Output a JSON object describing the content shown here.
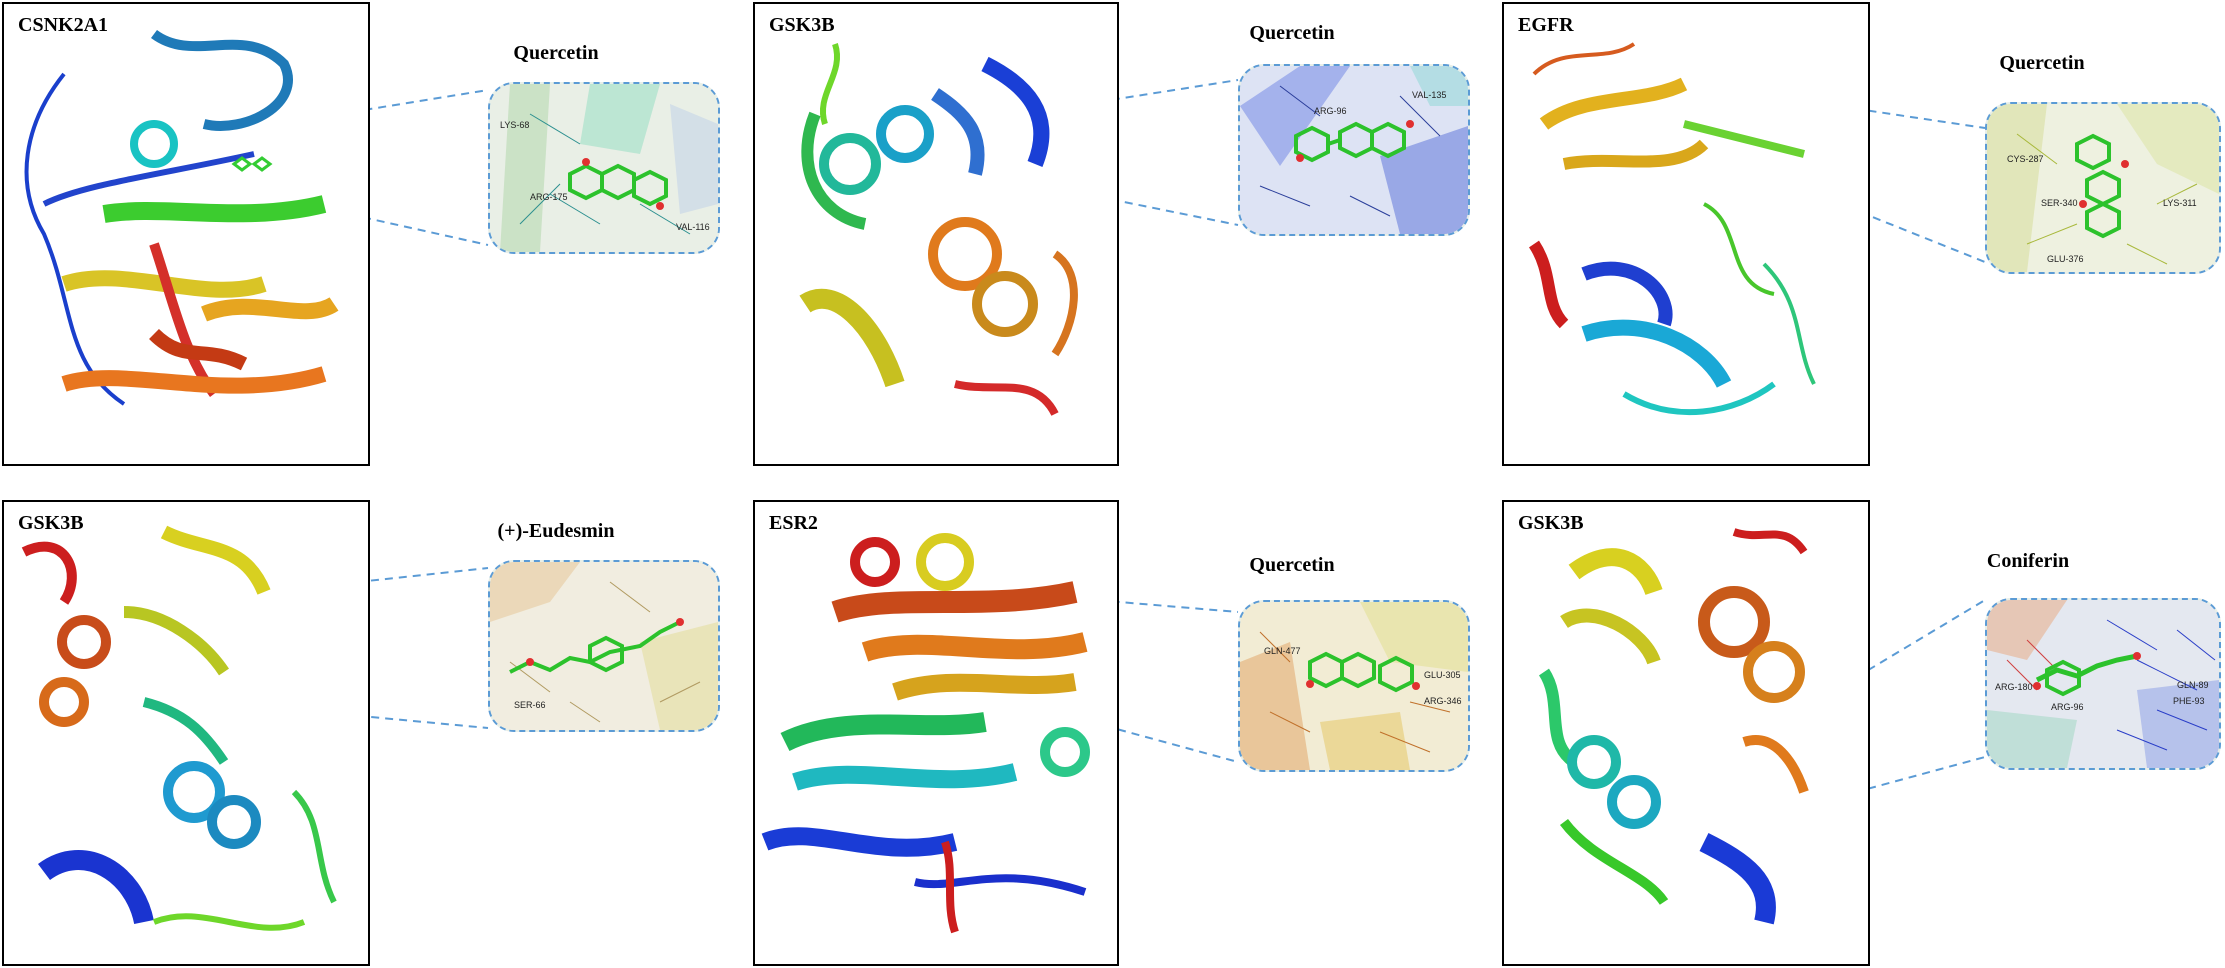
{
  "accent": {
    "dash": "#5b9bd5",
    "ligand": "#33cc33",
    "border": "#000000"
  },
  "panels": [
    {
      "protein": "CSNK2A1",
      "ligand": "Quercetin",
      "residues": [
        "LYS-68",
        "ARG-175",
        "VAL-116"
      ]
    },
    {
      "protein": "GSK3B",
      "ligand": "Quercetin",
      "residues": [
        "ARG-96",
        "VAL-135"
      ]
    },
    {
      "protein": "EGFR",
      "ligand": "Quercetin",
      "residues": [
        "CYS-287",
        "SER-340",
        "LYS-311",
        "GLU-376"
      ]
    },
    {
      "protein": "GSK3B",
      "ligand": "(+)-Eudesmin",
      "residues": [
        "SER-66"
      ]
    },
    {
      "protein": "ESR2",
      "ligand": "Quercetin",
      "residues": [
        "GLN-477",
        "GLU-305",
        "ARG-346"
      ]
    },
    {
      "protein": "GSK3B",
      "ligand": "Coniferin",
      "residues": [
        "ARG-180",
        "ARG-96",
        "GLN-89",
        "PHE-93"
      ]
    }
  ]
}
